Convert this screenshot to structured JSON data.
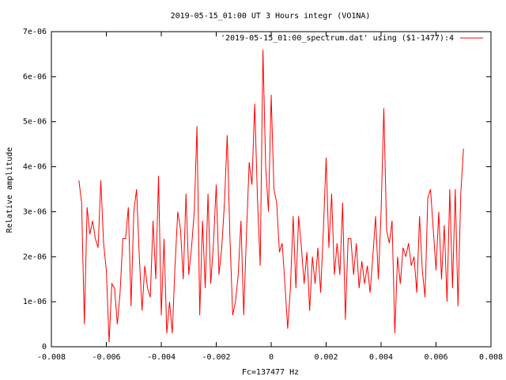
{
  "chart_data": {
    "type": "line",
    "title": "2019-05-15_01:00 UT 3 Hours integr (VO1NA)",
    "x_label": "Fc=137477 Hz",
    "y_label": "Relative amplitude",
    "legend_position": "top-right",
    "xlim": [
      -0.008,
      0.008
    ],
    "xticks": [
      -0.008,
      -0.006,
      -0.004,
      -0.002,
      0,
      0.002,
      0.004,
      0.006,
      0.008
    ],
    "ylim": [
      0,
      7e-06
    ],
    "yticks": [
      0,
      {
        "value": 1e-06,
        "label": "1e-06"
      },
      {
        "value": 2e-06,
        "label": "2e-06"
      },
      {
        "value": 3e-06,
        "label": "3e-06"
      },
      {
        "value": 4e-06,
        "label": "4e-06"
      },
      {
        "value": 5e-06,
        "label": "5e-06"
      },
      {
        "value": 6e-06,
        "label": "6e-06"
      },
      {
        "value": 7e-06,
        "label": "7e-06"
      }
    ],
    "x": [
      -0.007,
      -0.0069,
      -0.0068,
      -0.0067,
      -0.0066,
      -0.0065,
      -0.0064,
      -0.0063,
      -0.0062,
      -0.0061,
      -0.006,
      -0.0059,
      -0.0058,
      -0.0057,
      -0.0056,
      -0.0055,
      -0.0054,
      -0.0053,
      -0.0052,
      -0.0051,
      -0.005,
      -0.0049,
      -0.0048,
      -0.0047,
      -0.0046,
      -0.0045,
      -0.0044,
      -0.0043,
      -0.0042,
      -0.0041,
      -0.004,
      -0.0039,
      -0.0038,
      -0.0037,
      -0.0036,
      -0.0035,
      -0.0034,
      -0.0033,
      -0.0032,
      -0.0031,
      -0.003,
      -0.0029,
      -0.0028,
      -0.0027,
      -0.0026,
      -0.0025,
      -0.0024,
      -0.0023,
      -0.0022,
      -0.0021,
      -0.002,
      -0.0019,
      -0.0018,
      -0.0017,
      -0.0016,
      -0.0015,
      -0.0014,
      -0.0013,
      -0.0012,
      -0.0011,
      -0.001,
      -0.0009,
      -0.0008,
      -0.0007,
      -0.0006,
      -0.0005,
      -0.0004,
      -0.0003,
      -0.0002,
      -0.0001,
      0,
      0.0001,
      0.0002,
      0.0003,
      0.0004,
      0.0005,
      0.0006,
      0.0007,
      0.0008,
      0.0009,
      0.001,
      0.0011,
      0.0012,
      0.0013,
      0.0014,
      0.0015,
      0.0016,
      0.0017,
      0.0018,
      0.0019,
      0.002,
      0.0021,
      0.0022,
      0.0023,
      0.0024,
      0.0025,
      0.0026,
      0.0027,
      0.0028,
      0.0029,
      0.003,
      0.0031,
      0.0032,
      0.0033,
      0.0034,
      0.0035,
      0.0036,
      0.0037,
      0.0038,
      0.0039,
      0.004,
      0.0041,
      0.0042,
      0.0043,
      0.0044,
      0.0045,
      0.0046,
      0.0047,
      0.0048,
      0.0049,
      0.005,
      0.0051,
      0.0052,
      0.0053,
      0.0054,
      0.0055,
      0.0056,
      0.0057,
      0.0058,
      0.0059,
      0.006,
      0.0061,
      0.0062,
      0.0063,
      0.0064,
      0.0065,
      0.0066,
      0.0067,
      0.0068,
      0.0069,
      0.007
    ],
    "series": [
      {
        "name": "'2019-05-15_01:00_spectrum.dat' using ($1-1477):4",
        "color": "#ff0000",
        "values": [
          3.7e-06,
          3.2e-06,
          5e-07,
          3.1e-06,
          2.5e-06,
          2.8e-06,
          2.4e-06,
          2.2e-06,
          3.7e-06,
          2.3e-06,
          1.7e-06,
          1e-07,
          1.4e-06,
          1.3e-06,
          5e-07,
          1.2e-06,
          2.4e-06,
          2.4e-06,
          3.1e-06,
          9e-07,
          3e-06,
          3.5e-06,
          2e-06,
          8e-07,
          1.8e-06,
          1.3e-06,
          1.1e-06,
          2.8e-06,
          1.5e-06,
          3.8e-06,
          7e-07,
          2.4e-06,
          3e-07,
          1e-06,
          3e-07,
          1.8e-06,
          3e-06,
          2.6e-06,
          1.5e-06,
          3.4e-06,
          1.6e-06,
          2.2e-06,
          3e-06,
          4.9e-06,
          7e-07,
          2.8e-06,
          1.3e-06,
          3.4e-06,
          1.4e-06,
          2.3e-06,
          3.6e-06,
          1.6e-06,
          2.2e-06,
          3.2e-06,
          4.7e-06,
          2.4e-06,
          7e-07,
          1e-06,
          1.6e-06,
          2.8e-06,
          7e-07,
          2.5e-06,
          4.1e-06,
          3.6e-06,
          5.4e-06,
          3.3e-06,
          1.8e-06,
          6.6e-06,
          4e-06,
          3e-06,
          5.6e-06,
          3.5e-06,
          3.2e-06,
          2.1e-06,
          2.3e-06,
          1.4e-06,
          4e-07,
          1.3e-06,
          2.9e-06,
          1.3e-06,
          2.9e-06,
          2.2e-06,
          1.4e-06,
          2.1e-06,
          8e-07,
          2e-06,
          1.4e-06,
          2.2e-06,
          1.2e-06,
          2.6e-06,
          4.2e-06,
          2.2e-06,
          3.4e-06,
          1.6e-06,
          2.3e-06,
          1.6e-06,
          3.2e-06,
          6e-07,
          2.4e-06,
          2.4e-06,
          1.6e-06,
          2.3e-06,
          1.3e-06,
          1.9e-06,
          1.4e-06,
          1.8e-06,
          1.2e-06,
          2e-06,
          2.9e-06,
          1.5e-06,
          3e-06,
          5.3e-06,
          2.6e-06,
          2.3e-06,
          2.8e-06,
          3e-07,
          2e-06,
          1.4e-06,
          2.2e-06,
          2e-06,
          2.3e-06,
          1.8e-06,
          2e-06,
          1.2e-06,
          2.9e-06,
          1.7e-06,
          1.1e-06,
          3.3e-06,
          3.5e-06,
          2.6e-06,
          1.7e-06,
          3e-06,
          1.5e-06,
          2.7e-06,
          1e-06,
          3.5e-06,
          1.3e-06,
          3.5e-06,
          9e-07,
          3.4e-06,
          4.4e-06
        ]
      }
    ]
  }
}
